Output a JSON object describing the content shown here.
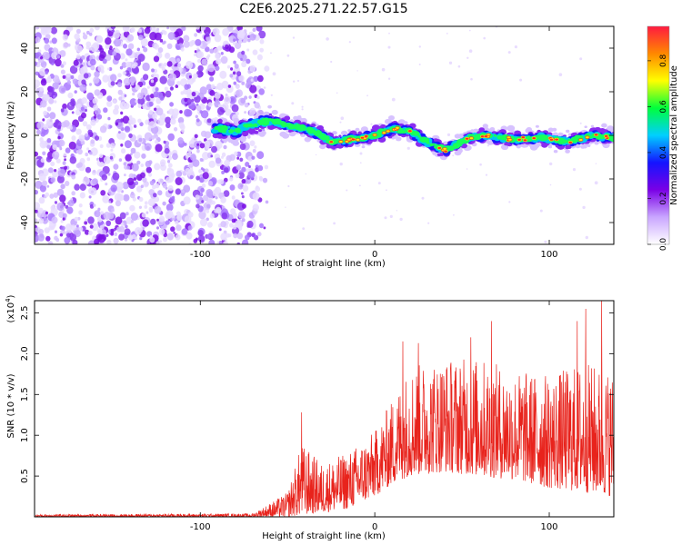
{
  "title": "C2E6.2025.271.22.57.G15",
  "chart_data": [
    {
      "type": "heatmap",
      "name": "spectrogram",
      "xlabel": "Height of straight line (km)",
      "ylabel": "Frequency (Hz)",
      "xlim": [
        -195,
        137
      ],
      "ylim": [
        -50,
        50
      ],
      "x_ticks": [
        -100,
        0,
        100
      ],
      "x_tick_labels": [
        "-100",
        "0",
        "100"
      ],
      "y_ticks": [
        -40,
        -20,
        0,
        20,
        40
      ],
      "y_tick_labels": [
        "-40",
        "-20",
        "0",
        "20",
        "40"
      ],
      "noise_region_x": [
        -195,
        -68
      ],
      "signal_start_x": -92,
      "ridge": [
        {
          "x": -92,
          "y": 3
        },
        {
          "x": -80,
          "y": 2
        },
        {
          "x": -70,
          "y": 5
        },
        {
          "x": -60,
          "y": 7
        },
        {
          "x": -52,
          "y": 5
        },
        {
          "x": -45,
          "y": 4
        },
        {
          "x": -35,
          "y": 2
        },
        {
          "x": -25,
          "y": -3
        },
        {
          "x": -15,
          "y": -2
        },
        {
          "x": -5,
          "y": -1
        },
        {
          "x": 0,
          "y": 0
        },
        {
          "x": 10,
          "y": 3
        },
        {
          "x": 20,
          "y": 2
        },
        {
          "x": 30,
          "y": -3
        },
        {
          "x": 40,
          "y": -7
        },
        {
          "x": 45,
          "y": -5
        },
        {
          "x": 55,
          "y": -1
        },
        {
          "x": 65,
          "y": 0
        },
        {
          "x": 80,
          "y": -2
        },
        {
          "x": 95,
          "y": -1
        },
        {
          "x": 110,
          "y": -3
        },
        {
          "x": 125,
          "y": 0
        },
        {
          "x": 137,
          "y": -1
        }
      ],
      "colorbar": {
        "label": "Normalized spectral amplitude",
        "range": [
          0,
          0.95
        ],
        "ticks": [
          0.0,
          0.2,
          0.4,
          0.6,
          0.8
        ],
        "tick_labels": [
          "0.0",
          "0.2",
          "0.4",
          "0.6",
          "0.8"
        ],
        "stops": [
          "#ffffff",
          "#c9a6ff",
          "#7a00e6",
          "#1414ff",
          "#00cfff",
          "#00ff3c",
          "#ffff00",
          "#ff8800",
          "#ff1a40"
        ]
      }
    },
    {
      "type": "line",
      "name": "snr",
      "xlabel": "Height of straight line (km)",
      "ylabel": "SNR (10 * v/v)",
      "scale_label": "(x10",
      "scale_exponent": "4",
      "scale_close": ")",
      "xlim": [
        -195,
        137
      ],
      "ylim": [
        0,
        2.65
      ],
      "x_ticks": [
        -100,
        0,
        100
      ],
      "x_tick_labels": [
        "-100",
        "0",
        "100"
      ],
      "y_ticks": [
        0.5,
        1.0,
        1.5,
        2.0,
        2.5
      ],
      "y_tick_labels": [
        "0.5",
        "1.0",
        "1.5",
        "2.0",
        "2.5"
      ],
      "series_color": "#e8231c",
      "envelope": [
        {
          "x": -195,
          "lo": 0.0,
          "hi": 0.03
        },
        {
          "x": -70,
          "lo": 0.0,
          "hi": 0.04
        },
        {
          "x": -50,
          "lo": 0.0,
          "hi": 0.3
        },
        {
          "x": -42,
          "lo": 0.02,
          "hi": 0.9
        },
        {
          "x": -30,
          "lo": 0.05,
          "hi": 0.65
        },
        {
          "x": -15,
          "lo": 0.1,
          "hi": 0.8
        },
        {
          "x": 0,
          "lo": 0.25,
          "hi": 1.05
        },
        {
          "x": 10,
          "lo": 0.4,
          "hi": 1.45
        },
        {
          "x": 20,
          "lo": 0.5,
          "hi": 1.85
        },
        {
          "x": 40,
          "lo": 0.55,
          "hi": 1.95
        },
        {
          "x": 60,
          "lo": 0.5,
          "hi": 1.95
        },
        {
          "x": 80,
          "lo": 0.45,
          "hi": 1.8
        },
        {
          "x": 100,
          "lo": 0.35,
          "hi": 1.75
        },
        {
          "x": 120,
          "lo": 0.3,
          "hi": 1.9
        },
        {
          "x": 137,
          "lo": 0.25,
          "hi": 1.8
        }
      ],
      "spikes": [
        {
          "x": -42,
          "y": 1.28
        },
        {
          "x": 16,
          "y": 2.15
        },
        {
          "x": 25,
          "y": 2.13
        },
        {
          "x": 55,
          "y": 2.2
        },
        {
          "x": 67,
          "y": 2.4
        },
        {
          "x": 116,
          "y": 2.4
        },
        {
          "x": 121,
          "y": 2.55
        },
        {
          "x": 130,
          "y": 2.65
        }
      ]
    }
  ]
}
